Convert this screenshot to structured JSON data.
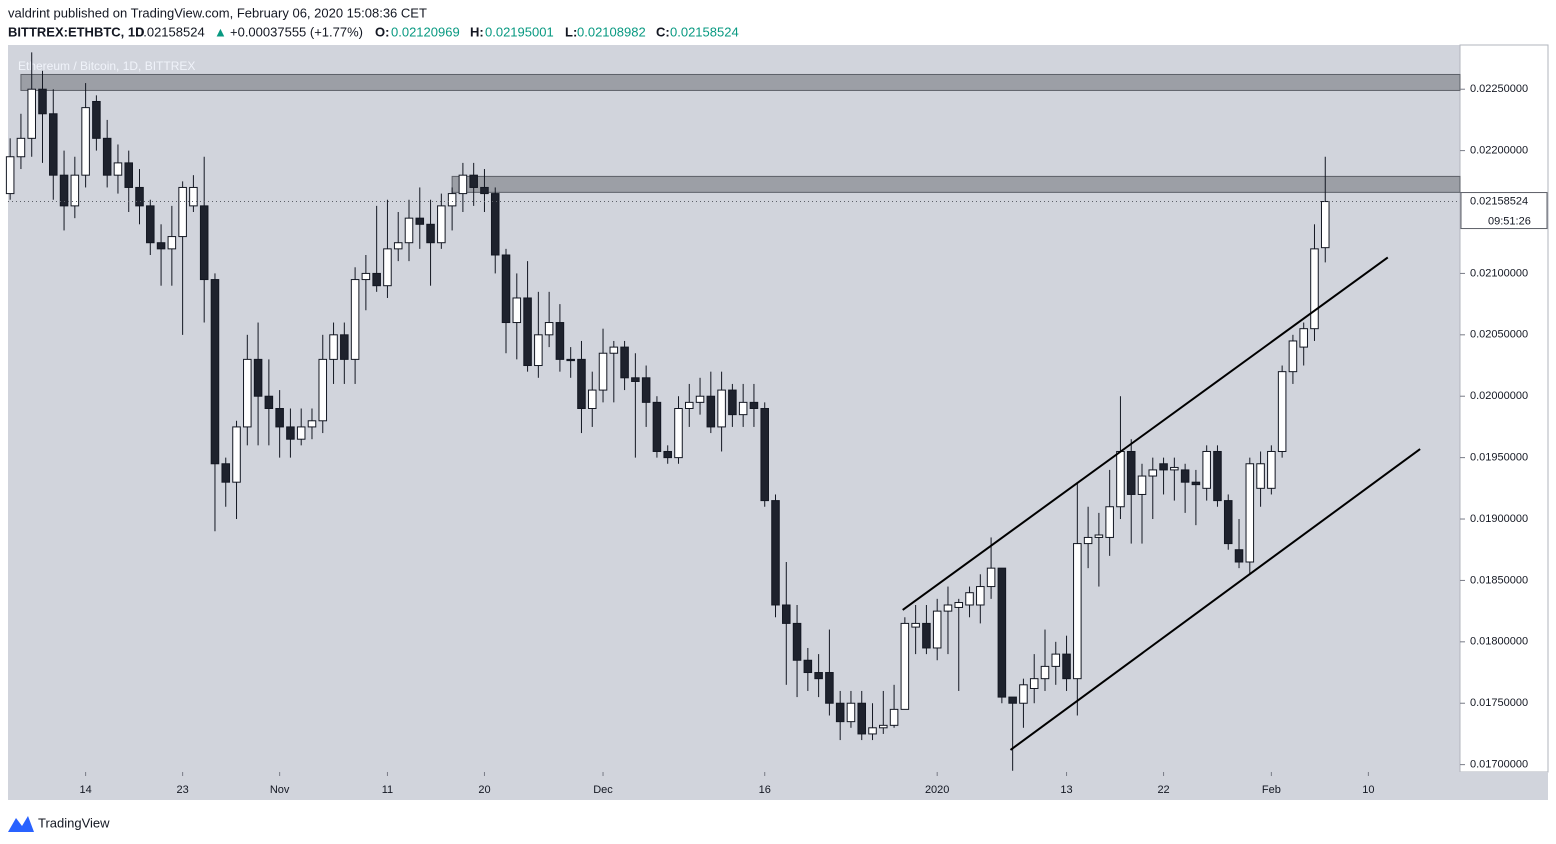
{
  "header": {
    "published": "valdrint published on TradingView.com, February 06, 2020 15:08:36 CET",
    "symbol": "BITTREX:ETHBTC, 1D",
    "price": "0.02158524",
    "arrow": "▲",
    "change": "+0.00037555 (+1.77%)",
    "open_label": "O:",
    "open": "0.02120969",
    "high_label": "H:",
    "high": "0.02195001",
    "low_label": "L:",
    "low": "0.02108982",
    "close_label": "C:",
    "close": "0.02158524"
  },
  "footer": {
    "brand": "TradingView"
  },
  "chart_data": {
    "type": "candlestick",
    "watermark": "Ethereum / Bitcoin, 1D, BITTREX",
    "up_color": "#ffffff",
    "down_color": "#1e222d",
    "background": "#d1d4dc",
    "xlim": [
      -0.2,
      134.5
    ],
    "ylim": [
      0.01694,
      0.02286
    ],
    "xticks": [
      {
        "value": 7,
        "label": "14"
      },
      {
        "value": 16,
        "label": "23"
      },
      {
        "value": 25,
        "label": "Nov"
      },
      {
        "value": 35,
        "label": "11"
      },
      {
        "value": 44,
        "label": "20"
      },
      {
        "value": 55,
        "label": "Dec"
      },
      {
        "value": 70,
        "label": "16"
      },
      {
        "value": 86,
        "label": "2020"
      },
      {
        "value": 98,
        "label": "13"
      },
      {
        "value": 107,
        "label": "22"
      },
      {
        "value": 117,
        "label": "Feb"
      },
      {
        "value": 126,
        "label": "10"
      }
    ],
    "yticks": [
      {
        "value": 0.017,
        "label": "0.01700000"
      },
      {
        "value": 0.0175,
        "label": "0.01750000"
      },
      {
        "value": 0.018,
        "label": "0.01800000"
      },
      {
        "value": 0.0185,
        "label": "0.01850000"
      },
      {
        "value": 0.019,
        "label": "0.01900000"
      },
      {
        "value": 0.0195,
        "label": "0.01950000"
      },
      {
        "value": 0.02,
        "label": "0.02000000"
      },
      {
        "value": 0.0205,
        "label": "0.02050000"
      },
      {
        "value": 0.021,
        "label": "0.02100000"
      },
      {
        "value": 0.022,
        "label": "0.02200000"
      },
      {
        "value": 0.0225,
        "label": "0.02250000"
      }
    ],
    "last_price": {
      "value": 0.02158524,
      "label": "0.02158524",
      "countdown": "09:51:26"
    },
    "zones": [
      {
        "from": 0.02249,
        "to": 0.02262,
        "start": 1
      },
      {
        "from": 0.02166,
        "to": 0.02179,
        "start": 41
      }
    ],
    "trendlines": [
      {
        "x": [
          82.8,
          127.8
        ],
        "y": [
          0.01826,
          0.02113
        ]
      },
      {
        "x": [
          92.8,
          130.8
        ],
        "y": [
          0.01712,
          0.01957
        ]
      }
    ],
    "open": [
      0.02165,
      0.02195,
      0.0221,
      0.0225,
      0.0223,
      0.0218,
      0.02155,
      0.0218,
      0.0224,
      0.0221,
      0.0218,
      0.0219,
      0.0217,
      0.02155,
      0.02125,
      0.0212,
      0.0213,
      0.02155,
      0.02155,
      0.02095,
      0.01945,
      0.0193,
      0.01975,
      0.0203,
      0.02,
      0.0199,
      0.01975,
      0.01965,
      0.01975,
      0.0198,
      0.0203,
      0.0205,
      0.0203,
      0.02095,
      0.021,
      0.0209,
      0.0212,
      0.02125,
      0.02145,
      0.0214,
      0.02125,
      0.02155,
      0.02165,
      0.0218,
      0.0217,
      0.02165,
      0.02115,
      0.0206,
      0.0208,
      0.02025,
      0.0205,
      0.0206,
      0.0203,
      0.0203,
      0.0199,
      0.02005,
      0.02035,
      0.0204,
      0.02015,
      0.02015,
      0.01995,
      0.01955,
      0.0195,
      0.0199,
      0.01995,
      0.02,
      0.01975,
      0.02005,
      0.01985,
      0.01995,
      0.0199,
      0.01915,
      0.0183,
      0.01815,
      0.01785,
      0.01775,
      0.01775,
      0.0175,
      0.01735,
      0.0175,
      0.01725,
      0.0173,
      0.01732,
      0.01745,
      0.01812,
      0.01815,
      0.01795,
      0.01825,
      0.01828,
      0.0183,
      0.0183,
      0.01845,
      0.0186,
      0.01755,
      0.0175,
      0.01762,
      0.0177,
      0.0178,
      0.0179,
      0.0177,
      0.0188,
      0.01885,
      0.01885,
      0.0191,
      0.01955,
      0.0192,
      0.01935,
      0.01945,
      0.0194,
      0.0194,
      0.0193,
      0.01925,
      0.01955,
      0.01915,
      0.01875,
      0.01865,
      0.01925,
      0.01925,
      0.01955,
      0.0202,
      0.0204,
      0.02055,
      0.02120969
    ],
    "high": [
      0.0221,
      0.0223,
      0.0228,
      0.02265,
      0.0225,
      0.022,
      0.02195,
      0.02255,
      0.02245,
      0.02225,
      0.02205,
      0.022,
      0.02185,
      0.0216,
      0.0214,
      0.02155,
      0.02175,
      0.0218,
      0.02195,
      0.021,
      0.0195,
      0.0198,
      0.0205,
      0.0206,
      0.0203,
      0.02005,
      0.0199,
      0.0199,
      0.0199,
      0.0205,
      0.0206,
      0.0206,
      0.02105,
      0.02115,
      0.02155,
      0.0216,
      0.0215,
      0.0216,
      0.0217,
      0.0216,
      0.02165,
      0.0217,
      0.0219,
      0.0219,
      0.02185,
      0.0217,
      0.0212,
      0.021,
      0.0211,
      0.02085,
      0.02085,
      0.02075,
      0.0204,
      0.02045,
      0.0202,
      0.02055,
      0.02045,
      0.02045,
      0.02035,
      0.02025,
      0.02,
      0.0196,
      0.02,
      0.0201,
      0.02015,
      0.0202,
      0.0202,
      0.0201,
      0.0201,
      0.0201,
      0.01995,
      0.0192,
      0.01865,
      0.0183,
      0.01795,
      0.0179,
      0.0181,
      0.0176,
      0.0176,
      0.0176,
      0.0175,
      0.0176,
      0.01765,
      0.0182,
      0.0183,
      0.0183,
      0.01835,
      0.01845,
      0.01835,
      0.01845,
      0.01855,
      0.01885,
      0.0186,
      0.01755,
      0.0177,
      0.0179,
      0.0181,
      0.018,
      0.01805,
      0.0193,
      0.0191,
      0.01905,
      0.0194,
      0.02,
      0.01965,
      0.01945,
      0.0195,
      0.0195,
      0.0195,
      0.01945,
      0.0194,
      0.0196,
      0.0196,
      0.0192,
      0.019,
      0.0195,
      0.01955,
      0.0196,
      0.02025,
      0.0205,
      0.0206,
      0.0214,
      0.02195001
    ],
    "low": [
      0.0216,
      0.02185,
      0.02195,
      0.0219,
      0.0216,
      0.02135,
      0.02145,
      0.0217,
      0.022,
      0.0217,
      0.02165,
      0.0215,
      0.0214,
      0.02115,
      0.0209,
      0.0209,
      0.0205,
      0.0215,
      0.0206,
      0.0189,
      0.0191,
      0.019,
      0.0196,
      0.0196,
      0.0196,
      0.0195,
      0.0195,
      0.0196,
      0.01965,
      0.0197,
      0.0201,
      0.0201,
      0.0201,
      0.0207,
      0.02085,
      0.0208,
      0.0211,
      0.0211,
      0.0212,
      0.0209,
      0.0212,
      0.02135,
      0.0215,
      0.02155,
      0.0215,
      0.021,
      0.02035,
      0.0203,
      0.0202,
      0.02015,
      0.0204,
      0.0202,
      0.02015,
      0.0197,
      0.01975,
      0.01995,
      0.01995,
      0.02005,
      0.0195,
      0.01975,
      0.0195,
      0.01945,
      0.01945,
      0.01975,
      0.01985,
      0.0197,
      0.01955,
      0.01975,
      0.01975,
      0.01975,
      0.0191,
      0.0182,
      0.01765,
      0.01755,
      0.0176,
      0.01755,
      0.0174,
      0.0172,
      0.0173,
      0.0172,
      0.0172,
      0.01725,
      0.0173,
      0.01745,
      0.0179,
      0.0179,
      0.01785,
      0.0179,
      0.0176,
      0.0182,
      0.01815,
      0.01835,
      0.0175,
      0.01695,
      0.0173,
      0.0175,
      0.0176,
      0.01765,
      0.0176,
      0.0174,
      0.0186,
      0.01845,
      0.0187,
      0.019,
      0.0188,
      0.0188,
      0.019,
      0.0192,
      0.01915,
      0.01905,
      0.01895,
      0.01915,
      0.0191,
      0.01875,
      0.0186,
      0.01855,
      0.0191,
      0.0192,
      0.0195,
      0.0201,
      0.02025,
      0.02045,
      0.02108982
    ],
    "close": [
      0.02195,
      0.0221,
      0.0225,
      0.0223,
      0.0218,
      0.02155,
      0.0218,
      0.02235,
      0.0221,
      0.0218,
      0.0219,
      0.0217,
      0.02155,
      0.02125,
      0.0212,
      0.0213,
      0.0217,
      0.0217,
      0.02095,
      0.01945,
      0.0193,
      0.01975,
      0.0203,
      0.02,
      0.0199,
      0.01975,
      0.01965,
      0.01975,
      0.0198,
      0.0203,
      0.0205,
      0.0203,
      0.02095,
      0.021,
      0.0209,
      0.0212,
      0.02125,
      0.02145,
      0.0214,
      0.02125,
      0.02155,
      0.02165,
      0.0218,
      0.0217,
      0.02165,
      0.02115,
      0.0206,
      0.0208,
      0.02025,
      0.0205,
      0.0206,
      0.0203,
      0.02029,
      0.0199,
      0.02005,
      0.02035,
      0.0204,
      0.02015,
      0.02012,
      0.01995,
      0.01955,
      0.0195,
      0.0199,
      0.01995,
      0.02,
      0.01975,
      0.02005,
      0.01985,
      0.01995,
      0.0199,
      0.01915,
      0.0183,
      0.01815,
      0.01785,
      0.01775,
      0.0177,
      0.0175,
      0.01735,
      0.0175,
      0.01725,
      0.0173,
      0.01732,
      0.01745,
      0.01815,
      0.01815,
      0.01795,
      0.01825,
      0.0183,
      0.01832,
      0.0184,
      0.01845,
      0.0186,
      0.01755,
      0.0175,
      0.01765,
      0.0177,
      0.0178,
      0.0179,
      0.0177,
      0.0188,
      0.01885,
      0.01887,
      0.0191,
      0.01955,
      0.0192,
      0.01935,
      0.0194,
      0.0194,
      0.01942,
      0.0193,
      0.01928,
      0.01955,
      0.01915,
      0.0188,
      0.01865,
      0.01945,
      0.01945,
      0.01955,
      0.0202,
      0.02045,
      0.02055,
      0.0212,
      0.02158524
    ]
  }
}
